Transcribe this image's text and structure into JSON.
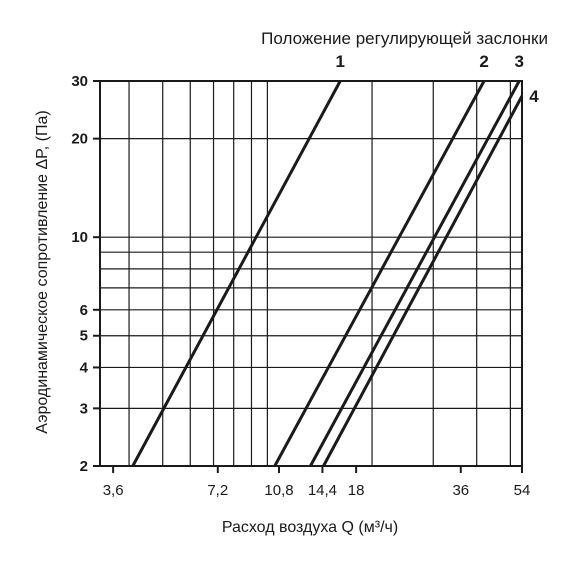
{
  "chart_data": {
    "type": "line",
    "title": "Положение регулирующей заслонки",
    "xlabel": "Расход воздуха Q (м³/ч)",
    "ylabel": "Аэродинамическое сопротивление ΔP, (Па)",
    "x_scale": "log",
    "y_scale": "log",
    "xlim": [
      3.3,
      54
    ],
    "ylim": [
      2,
      30
    ],
    "x_ticks": [
      3.6,
      7.2,
      10.8,
      14.4,
      18,
      36,
      54
    ],
    "x_tick_labels": [
      "3,6",
      "7,2",
      "10,8",
      "14,4",
      "18",
      "36",
      "54"
    ],
    "y_ticks": [
      2,
      3,
      4,
      5,
      6,
      10,
      20,
      30
    ],
    "y_tick_labels": [
      "2",
      "3",
      "4",
      "5",
      "6",
      "10",
      "20",
      "30"
    ],
    "grid": true,
    "series": [
      {
        "name": "1",
        "points": [
          [
            4.1,
            2
          ],
          [
            16.2,
            30
          ]
        ]
      },
      {
        "name": "2",
        "points": [
          [
            10.5,
            2
          ],
          [
            42.0,
            30
          ]
        ]
      },
      {
        "name": "3",
        "points": [
          [
            13.3,
            2
          ],
          [
            53.0,
            30
          ]
        ]
      },
      {
        "name": "4",
        "points": [
          [
            14.5,
            2
          ],
          [
            54.0,
            27
          ]
        ]
      }
    ]
  }
}
